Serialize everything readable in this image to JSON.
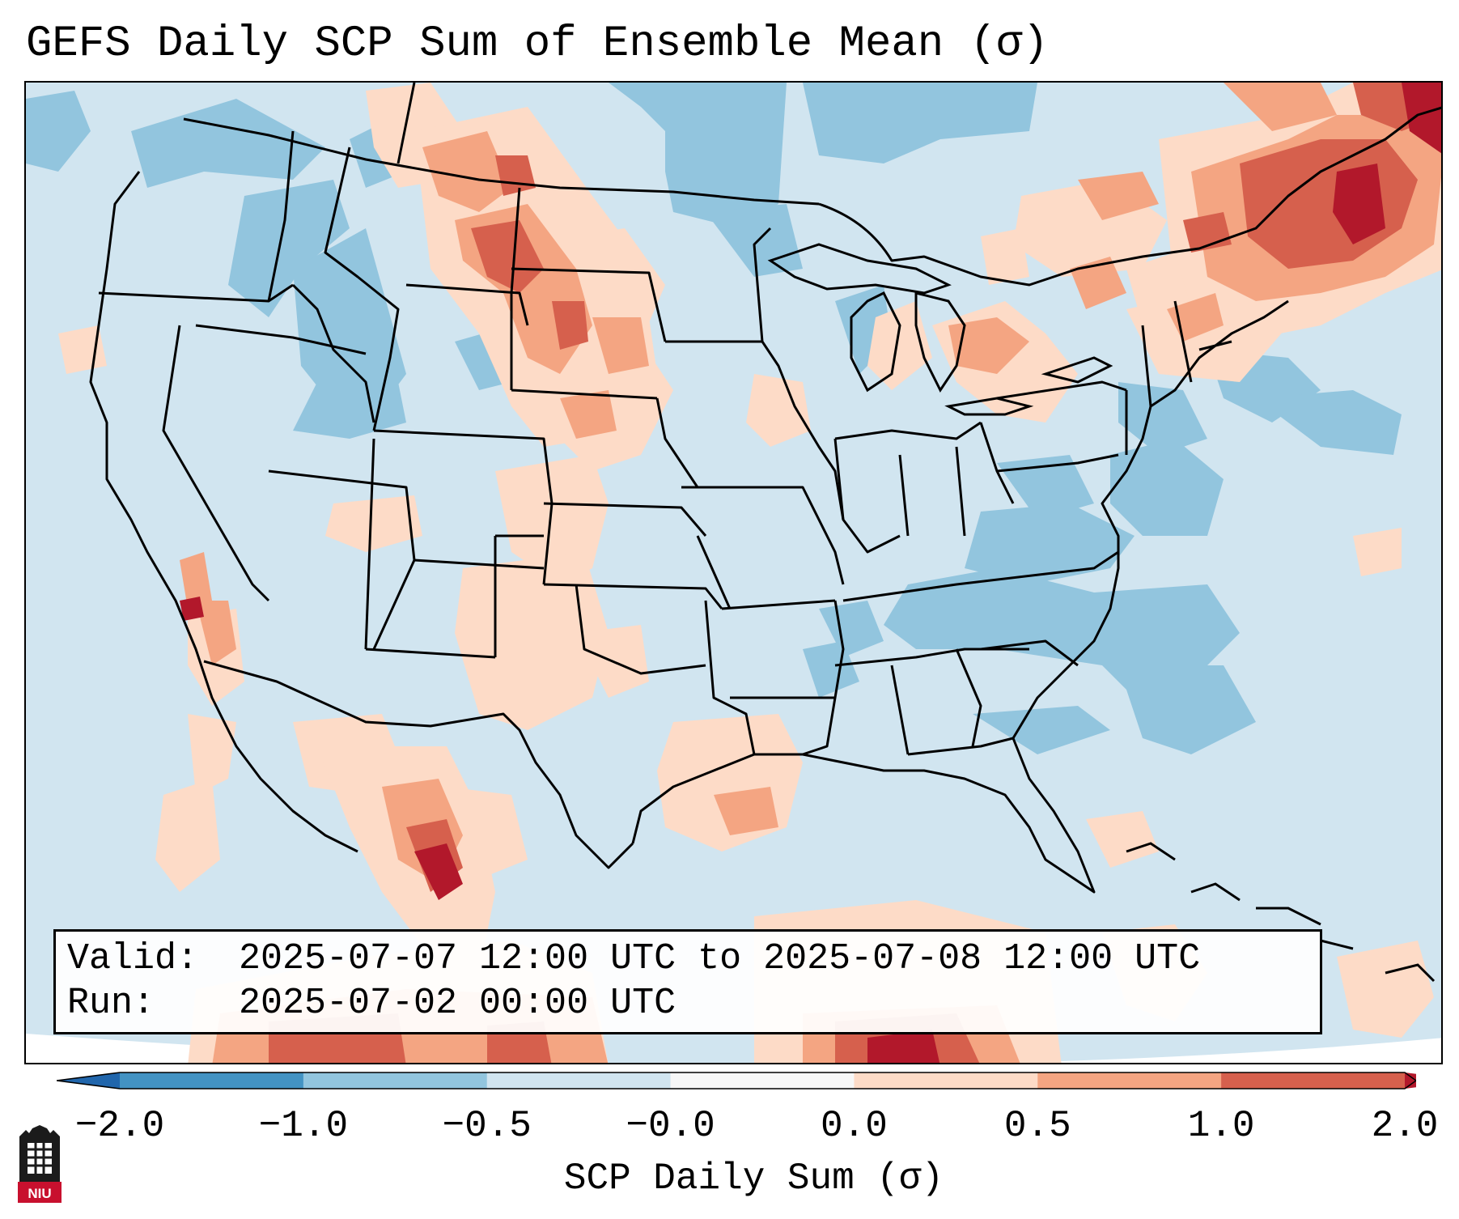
{
  "title": "GEFS Daily SCP Sum of Ensemble Mean (σ)",
  "info": {
    "valid_key": "Valid:",
    "valid_value": "2025-07-07 12:00 UTC to 2025-07-08 12:00 UTC",
    "run_key": "Run:",
    "run_value": "2025-07-02 00:00 UTC"
  },
  "colorbar": {
    "label": "SCP Daily Sum (σ)",
    "ticks": [
      "−2.0",
      "−1.0",
      "−0.5",
      "−0.0",
      "0.0",
      "0.5",
      "1.0",
      "2.0"
    ],
    "colors": [
      "#4393c3",
      "#92c5de",
      "#d1e5f0",
      "#f7f7f7",
      "#fddbc7",
      "#f4a582",
      "#d6604d"
    ],
    "extend_low_color": "#2166ac",
    "extend_high_color": "#b2182b"
  },
  "logo": {
    "name": "NIU",
    "text": "NIU"
  },
  "map": {
    "background_color": "#d1e5f0",
    "field_palette": {
      "neg_mod": "#92c5de",
      "pos_weak": "#fddbc7",
      "pos_mod": "#f4a582",
      "pos_strong": "#d6604d",
      "pos_extreme": "#b2182b"
    },
    "regions_description_free": true
  }
}
